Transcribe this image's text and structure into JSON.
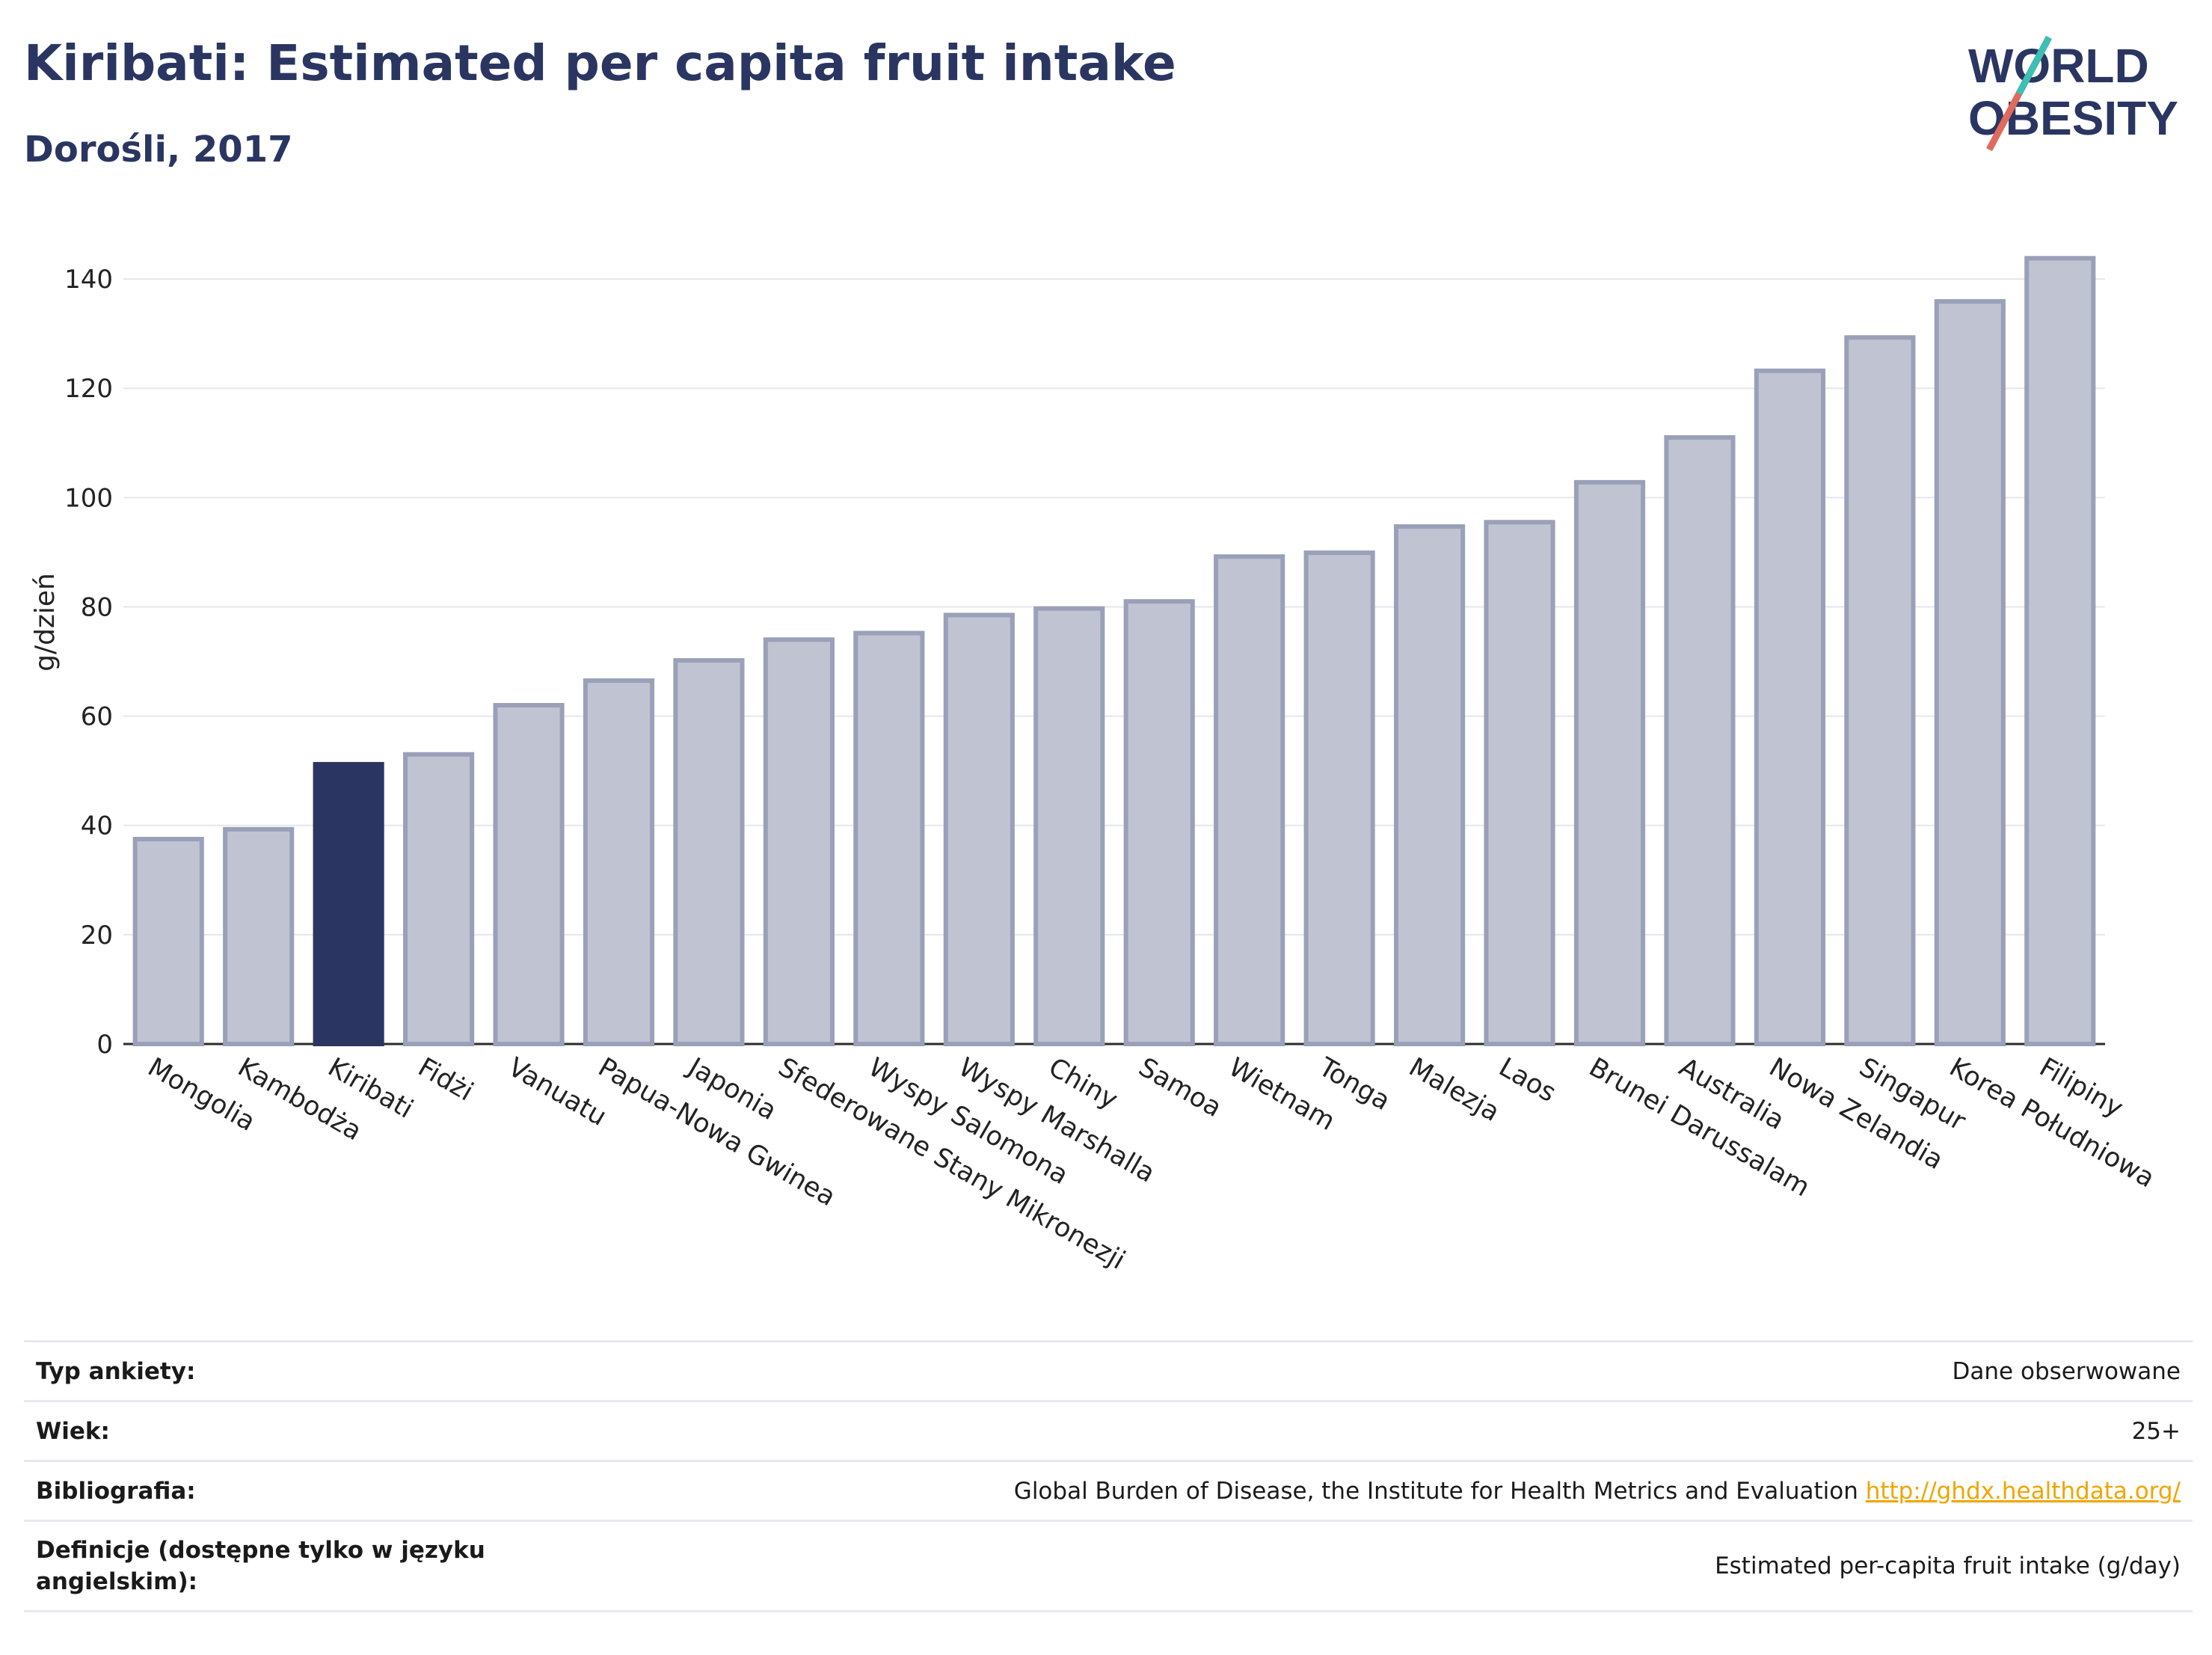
{
  "header": {
    "title": "Kiribati: Estimated per capita fruit intake",
    "subtitle": "Dorośli, 2017"
  },
  "logo": {
    "line1": "WORLD",
    "line2": "OBESITY"
  },
  "colors": {
    "highlight": "#2a3661",
    "bar": "#c0c3d1",
    "bar_stroke": "#9aa0b8",
    "grid": "#e5e7ee",
    "link": "#f0a500"
  },
  "chart_data": {
    "type": "bar",
    "categories": [
      "Mongolia",
      "Kambodża",
      "Kiribati",
      "Fidżi",
      "Vanuatu",
      "Papua-Nowa Gwinea",
      "Japonia",
      "Sfederowane Stany Mikronezji",
      "Wyspy Salomona",
      "Wyspy Marshalla",
      "Chiny",
      "Samoa",
      "Wietnam",
      "Tonga",
      "Malezja",
      "Laos",
      "Brunei Darussalam",
      "Australia",
      "Nowa Zelandia",
      "Singapur",
      "Korea Południowa",
      "Filipiny"
    ],
    "values": [
      37.5,
      39.3,
      51.2,
      53.0,
      62.0,
      66.5,
      70.2,
      74.0,
      75.2,
      78.5,
      79.7,
      81.0,
      89.2,
      89.9,
      94.7,
      95.5,
      102.8,
      111.0,
      123.2,
      129.3,
      135.9,
      143.8
    ],
    "highlight": "Kiribati",
    "ylabel": "g/dzień",
    "ylim": [
      0,
      150
    ],
    "yticks": [
      0,
      20,
      40,
      60,
      80,
      100,
      120,
      140
    ],
    "grid": true
  },
  "meta": [
    {
      "label": "Typ ankiety:",
      "value": "Dane obserwowane",
      "link": ""
    },
    {
      "label": "Wiek:",
      "value": "25+",
      "link": ""
    },
    {
      "label": "Bibliografia:",
      "value": "Global Burden of Disease, the Institute for Health Metrics and Evaluation",
      "link": "http://ghdx.healthdata.org/"
    },
    {
      "label": "Definicje (dostępne tylko w języku angielskim):",
      "value": "Estimated per-capita fruit intake (g/day)",
      "link": ""
    }
  ]
}
